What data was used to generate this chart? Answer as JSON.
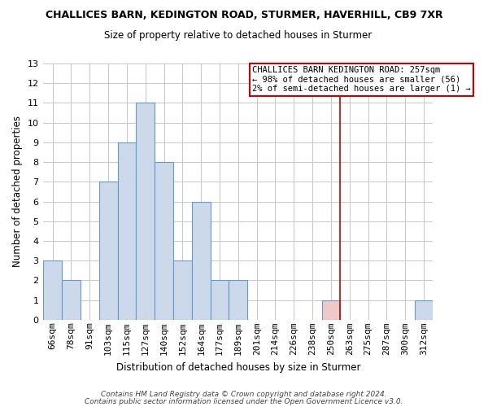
{
  "title": "CHALLICES BARN, KEDINGTON ROAD, STURMER, HAVERHILL, CB9 7XR",
  "subtitle": "Size of property relative to detached houses in Sturmer",
  "xlabel": "Distribution of detached houses by size in Sturmer",
  "ylabel": "Number of detached properties",
  "bar_labels": [
    "66sqm",
    "78sqm",
    "91sqm",
    "103sqm",
    "115sqm",
    "127sqm",
    "140sqm",
    "152sqm",
    "164sqm",
    "177sqm",
    "189sqm",
    "201sqm",
    "214sqm",
    "226sqm",
    "238sqm",
    "250sqm",
    "263sqm",
    "275sqm",
    "287sqm",
    "300sqm",
    "312sqm"
  ],
  "bar_values": [
    3,
    2,
    0,
    7,
    9,
    11,
    8,
    3,
    6,
    2,
    2,
    0,
    0,
    0,
    0,
    1,
    0,
    0,
    0,
    0,
    1
  ],
  "bar_color_normal": "#ccd9ea",
  "bar_color_highlight": "#f0c8c8",
  "highlight_index": 15,
  "ylim": [
    0,
    13
  ],
  "yticks": [
    0,
    1,
    2,
    3,
    4,
    5,
    6,
    7,
    8,
    9,
    10,
    11,
    12,
    13
  ],
  "grid_color": "#c8c8c8",
  "annotation_text_line1": "CHALLICES BARN KEDINGTON ROAD: 257sqm",
  "annotation_text_line2": "← 98% of detached houses are smaller (56)",
  "annotation_text_line3": "2% of semi-detached houses are larger (1) →",
  "footer_line1": "Contains HM Land Registry data © Crown copyright and database right 2024.",
  "footer_line2": "Contains public sector information licensed under the Open Government Licence v3.0.",
  "vline_x": 15.5,
  "bar_edge_color": "#6699cc",
  "vline_color": "#cc0000",
  "annotation_edge_color": "#cc0000",
  "background_color": "#ffffff",
  "title_fontsize": 9,
  "subtitle_fontsize": 8.5,
  "ylabel_fontsize": 8.5,
  "xlabel_fontsize": 8.5,
  "tick_fontsize": 8,
  "annot_fontsize": 7.5,
  "footer_fontsize": 6.5
}
